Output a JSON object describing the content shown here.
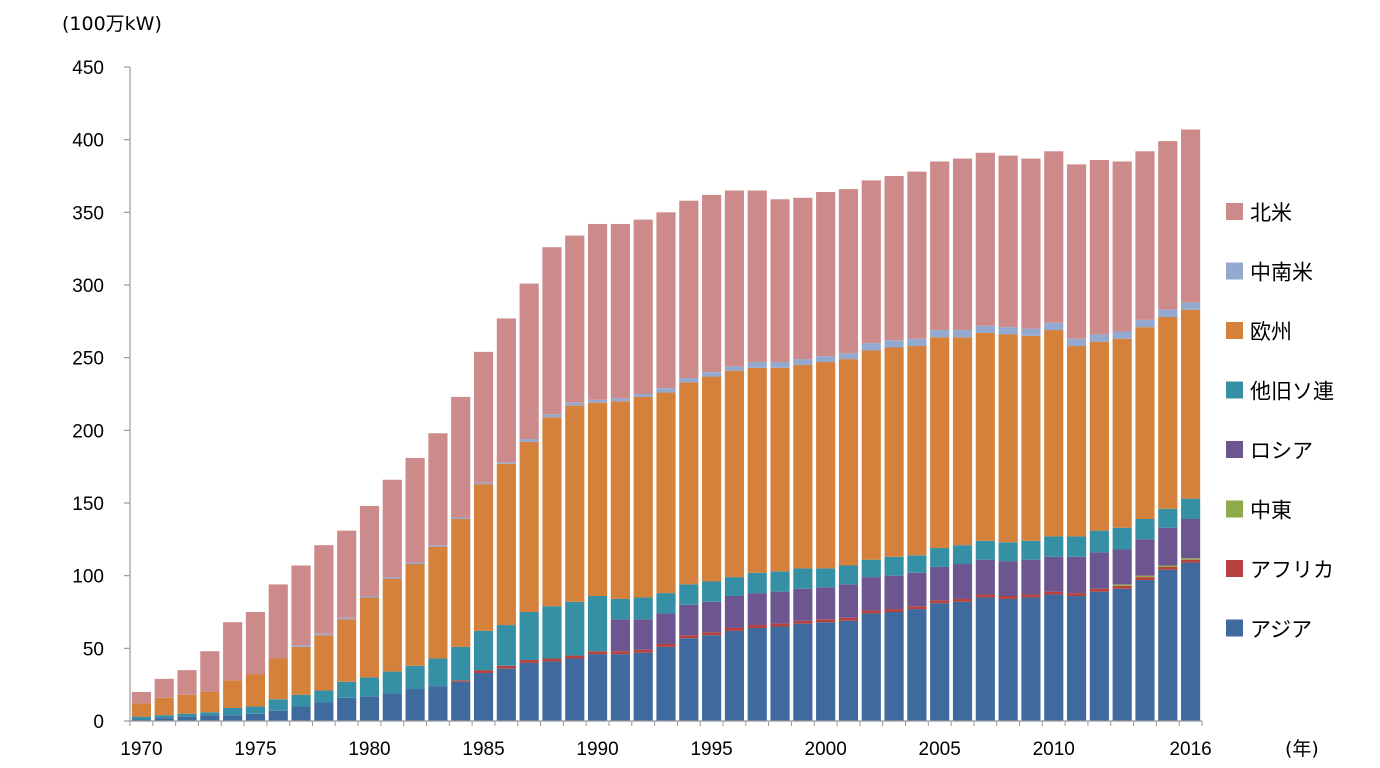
{
  "chart_data": {
    "type": "bar",
    "stacked": true,
    "y_unit_label": "(100万kW)",
    "x_unit_label": "(年)",
    "ylim": [
      0,
      450
    ],
    "y_ticks": [
      0,
      50,
      100,
      150,
      200,
      250,
      300,
      350,
      400,
      450
    ],
    "x_tick_labels": [
      "1970",
      "1975",
      "1980",
      "1985",
      "1990",
      "1995",
      "2000",
      "2005",
      "2010",
      "2016"
    ],
    "grid": false,
    "legend_position": "right",
    "categories": [
      1970,
      1971,
      1972,
      1973,
      1974,
      1975,
      1976,
      1977,
      1978,
      1979,
      1980,
      1981,
      1982,
      1983,
      1984,
      1985,
      1986,
      1987,
      1988,
      1989,
      1990,
      1991,
      1992,
      1993,
      1994,
      1995,
      1996,
      1997,
      1998,
      1999,
      2000,
      2001,
      2002,
      2003,
      2004,
      2005,
      2006,
      2007,
      2008,
      2009,
      2010,
      2011,
      2012,
      2013,
      2014,
      2015,
      2016
    ],
    "series": [
      {
        "name": "アジア",
        "color": "#3f6a9e",
        "values": [
          1,
          2,
          3,
          4,
          4,
          5,
          7,
          10,
          13,
          16,
          17,
          19,
          22,
          24,
          27,
          33,
          36,
          40,
          41,
          43,
          46,
          46,
          47,
          51,
          57,
          59,
          62,
          64,
          65,
          67,
          68,
          69,
          74,
          75,
          77,
          81,
          82,
          85,
          84,
          85,
          87,
          86,
          89,
          91,
          97,
          104,
          109
        ]
      },
      {
        "name": "アフリカ",
        "color": "#b7413e",
        "values": [
          0,
          0,
          0,
          0,
          0,
          0,
          0,
          0,
          0,
          0,
          0,
          0,
          0,
          0,
          1,
          2,
          2,
          2,
          2,
          2,
          2,
          2,
          2,
          2,
          2,
          2,
          2,
          2,
          2,
          2,
          2,
          2,
          2,
          2,
          2,
          2,
          2,
          2,
          2,
          2,
          2,
          2,
          2,
          2,
          2,
          2,
          2
        ]
      },
      {
        "name": "中東",
        "color": "#8eaa4c",
        "values": [
          0,
          0,
          0,
          0,
          0,
          0,
          0,
          0,
          0,
          0,
          0,
          0,
          0,
          0,
          0,
          0,
          0,
          0,
          0,
          0,
          0,
          0,
          0,
          0,
          0,
          0,
          0,
          0,
          0,
          0,
          0,
          0,
          0,
          0,
          0,
          0,
          0,
          0,
          0,
          0,
          0,
          0,
          0,
          1,
          1,
          1,
          1
        ]
      },
      {
        "name": "ロシア",
        "color": "#6d5590",
        "values": [
          0,
          0,
          0,
          0,
          0,
          0,
          0,
          0,
          0,
          0,
          0,
          0,
          0,
          0,
          0,
          0,
          0,
          0,
          0,
          0,
          0,
          22,
          21,
          21,
          21,
          21,
          22,
          22,
          22,
          22,
          22,
          23,
          23,
          23,
          23,
          23,
          24,
          24,
          24,
          24,
          24,
          25,
          25,
          24,
          25,
          26,
          27
        ]
      },
      {
        "name": "他旧ソ連",
        "color": "#3590a5",
        "values": [
          2,
          2,
          2,
          2,
          5,
          5,
          8,
          8,
          8,
          11,
          13,
          15,
          16,
          19,
          23,
          27,
          28,
          33,
          36,
          37,
          38,
          14,
          15,
          14,
          14,
          14,
          13,
          14,
          14,
          14,
          13,
          13,
          12,
          13,
          12,
          13,
          13,
          13,
          13,
          13,
          14,
          14,
          15,
          15,
          14,
          13,
          14
        ]
      },
      {
        "name": "欧州",
        "color": "#d5803b",
        "values": [
          9,
          12,
          13,
          14,
          19,
          22,
          28,
          33,
          38,
          43,
          55,
          64,
          70,
          77,
          88,
          101,
          111,
          117,
          130,
          135,
          133,
          136,
          138,
          138,
          139,
          141,
          142,
          141,
          140,
          140,
          142,
          142,
          144,
          144,
          144,
          145,
          143,
          143,
          143,
          141,
          142,
          131,
          130,
          130,
          132,
          132,
          130
        ]
      },
      {
        "name": "中南米",
        "color": "#94a9cf",
        "values": [
          0,
          0,
          0,
          0,
          0,
          0,
          0,
          1,
          1,
          1,
          1,
          1,
          1,
          1,
          1,
          1,
          1,
          2,
          2,
          2,
          2,
          2,
          2,
          3,
          3,
          3,
          3,
          4,
          4,
          4,
          4,
          4,
          5,
          5,
          5,
          5,
          5,
          5,
          5,
          5,
          5,
          5,
          5,
          5,
          5,
          5,
          5
        ]
      },
      {
        "name": "北米",
        "color": "#cd8a8a",
        "values": [
          8,
          13,
          17,
          28,
          40,
          43,
          51,
          55,
          61,
          60,
          62,
          67,
          72,
          77,
          83,
          90,
          99,
          107,
          115,
          115,
          121,
          120,
          120,
          121,
          122,
          122,
          121,
          118,
          112,
          111,
          113,
          113,
          112,
          113,
          115,
          116,
          118,
          119,
          118,
          117,
          118,
          120,
          120,
          117,
          116,
          116,
          119
        ]
      }
    ],
    "legend_order": [
      "北米",
      "中南米",
      "欧州",
      "他旧ソ連",
      "ロシア",
      "中東",
      "アフリカ",
      "アジア"
    ]
  }
}
